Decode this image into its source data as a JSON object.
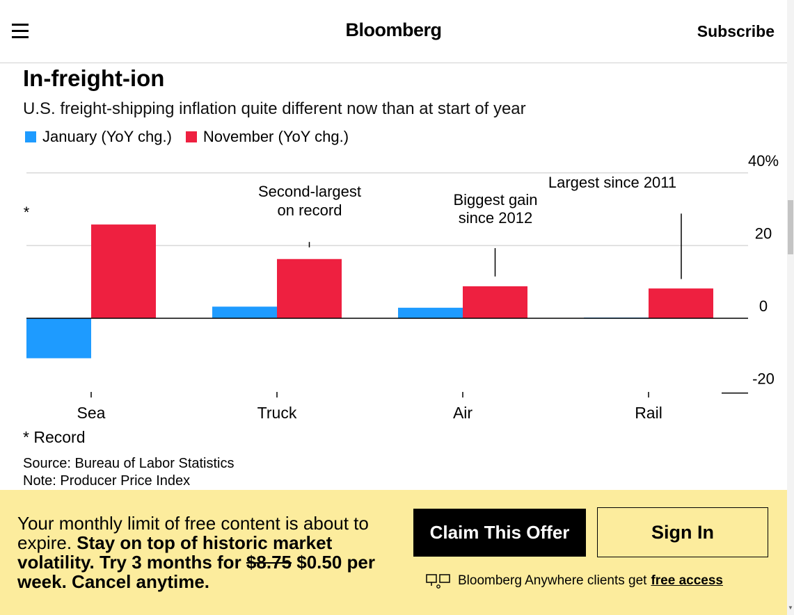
{
  "header": {
    "logo": "Bloomberg",
    "subscribe_label": "Subscribe",
    "menu_icon": "hamburger-menu-icon"
  },
  "chart": {
    "title": "In-freight-ion",
    "subtitle": "U.S. freight-shipping inflation quite different now than at start of year",
    "legend": [
      {
        "label": "January (YoY chg.)",
        "color": "#1e9bff"
      },
      {
        "label": "November (YoY chg.)",
        "color": "#ee2040"
      }
    ],
    "record_marker": "*",
    "footnote": "* Record",
    "source": "Source: Bureau of Labor Statistics",
    "note": "Note: Producer Price Index"
  },
  "chart_data": {
    "type": "bar",
    "categories": [
      "Sea",
      "Truck",
      "Air",
      "Rail"
    ],
    "series": [
      {
        "name": "January (YoY chg.)",
        "color": "#1e9bff",
        "values": [
          -11,
          3.2,
          2.9,
          0.2
        ]
      },
      {
        "name": "November (YoY chg.)",
        "color": "#ee2040",
        "values": [
          25.8,
          16.3,
          8.8,
          8.2
        ]
      }
    ],
    "yticks": [
      "40%",
      "20",
      "0",
      "-20"
    ],
    "ytick_values": [
      40,
      20,
      0,
      -20
    ],
    "ylim": [
      -20,
      40
    ],
    "annotations": [
      {
        "category": "Truck",
        "text_lines": [
          "Second-largest",
          "on record"
        ],
        "leader_from": 21,
        "leader_to": 19.5
      },
      {
        "category": "Air",
        "text_lines": [
          "Biggest gain",
          "since 2012"
        ],
        "leader_from": 19.3,
        "leader_to": 11.5
      },
      {
        "category": "Rail",
        "text_lines": [
          "Largest since 2011"
        ],
        "leader_from": 28.8,
        "leader_to": 10.8
      }
    ],
    "legend_position": "top-left",
    "grid": true
  },
  "paywall": {
    "text_plain": "Your monthly limit of free content is about to expire.",
    "text_bold": "Stay on top of historic market volatility. Try 3 months for",
    "old_price": "$8.75",
    "new_price_text": "$0.50 per week. Cancel anytime.",
    "claim_label": "Claim This Offer",
    "signin_label": "Sign In",
    "anywhere_text": "Bloomberg Anywhere clients get",
    "free_access_label": "free access",
    "anywhere_icon": "terminal-icon"
  }
}
